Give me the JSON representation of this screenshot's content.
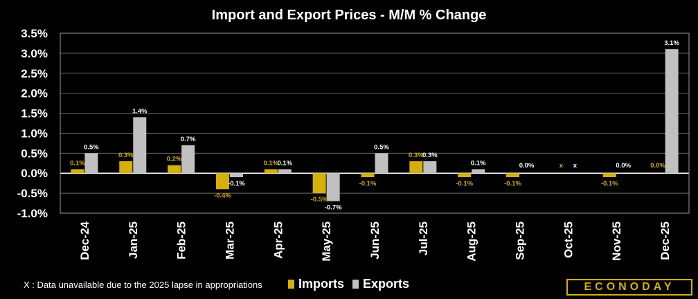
{
  "colors": {
    "imports": "#d4b00b",
    "exports": "#c0c0c0",
    "frame": "#9a9a9a",
    "grid": "#6e6e6e",
    "background": "#000000"
  },
  "chart_data": {
    "type": "bar",
    "title": "Import and Export Prices - M/M % Change",
    "xlabel": "",
    "ylabel": "",
    "ylim": [
      -1.0,
      3.5
    ],
    "yticks": [
      "3.5%",
      "3.0%",
      "2.5%",
      "2.0%",
      "1.5%",
      "1.0%",
      "0.5%",
      "0.0%",
      "-0.5%",
      "-1.0%"
    ],
    "ytick_values": [
      3.5,
      3.0,
      2.5,
      2.0,
      1.5,
      1.0,
      0.5,
      0.0,
      -0.5,
      -1.0
    ],
    "grid": true,
    "categories": [
      "Dec-24",
      "Jan-25",
      "Feb-25",
      "Mar-25",
      "Apr-25",
      "May-25",
      "Jun-25",
      "Jul-25",
      "Aug-25",
      "Sep-25",
      "Oct-25",
      "Nov-25",
      "Dec-25"
    ],
    "series": [
      {
        "name": "Imports",
        "values": [
          0.1,
          0.3,
          0.2,
          -0.4,
          0.1,
          -0.5,
          -0.1,
          0.3,
          -0.1,
          -0.1,
          null,
          -0.1,
          0.0
        ],
        "labels": [
          "0.1%",
          "0.3%",
          "0.2%",
          "-0.4%",
          "0.1%",
          "-0.5%",
          "-0.1%",
          "0.3%",
          "-0.1%",
          "-0.1%",
          "x",
          "-0.1%",
          "0.0%"
        ]
      },
      {
        "name": "Exports",
        "values": [
          0.5,
          1.4,
          0.7,
          -0.1,
          0.1,
          -0.7,
          0.5,
          0.3,
          0.1,
          0.0,
          null,
          0.0,
          3.1
        ],
        "labels": [
          "0.5%",
          "1.4%",
          "0.7%",
          "-0.1%",
          "0.1%",
          "-0.7%",
          "0.5%",
          "0.3%",
          "0.1%",
          "0.0%",
          "x",
          "0.0%",
          "3.1%"
        ]
      }
    ],
    "legend": {
      "placement": "bottom-center",
      "entries": [
        "Imports",
        "Exports"
      ]
    },
    "footnote": "X : Data unavailable due to the 2025 lapse in appropriations"
  },
  "brand": {
    "logo_text": "ECONODAY"
  }
}
